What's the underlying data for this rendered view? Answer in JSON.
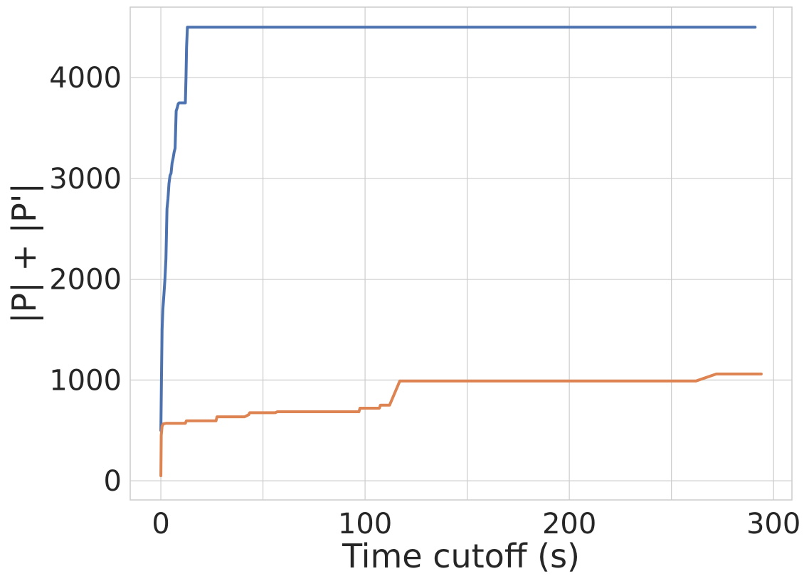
{
  "chart_data": {
    "type": "line",
    "title": "",
    "xlabel": "Time cutoff (s)",
    "ylabel": "|P| + |P'|",
    "xlim": [
      -15,
      309
    ],
    "ylim": [
      -190,
      4700
    ],
    "xticks": [
      0,
      100,
      200,
      300
    ],
    "xtick_labels": [
      "0",
      "100",
      "200",
      "300"
    ],
    "yticks": [
      0,
      1000,
      2000,
      3000,
      4000
    ],
    "ytick_labels": [
      "0",
      "1000",
      "2000",
      "3000",
      "4000"
    ],
    "grid": true,
    "legend": "none",
    "series": [
      {
        "color": "#4c72b0",
        "x": [
          0,
          0.3,
          0.6,
          1,
          1.5,
          2,
          2.5,
          3,
          3.5,
          4,
          4.5,
          5,
          5.5,
          6,
          6.5,
          7,
          7.5,
          8,
          8.5,
          9,
          10,
          11,
          12,
          12.3,
          12.6,
          13,
          100,
          200,
          291
        ],
        "y": [
          500,
          1000,
          1500,
          1700,
          1850,
          2000,
          2200,
          2700,
          2800,
          2950,
          3030,
          3050,
          3150,
          3200,
          3260,
          3300,
          3670,
          3700,
          3740,
          3750,
          3750,
          3750,
          3750,
          4000,
          4300,
          4500,
          4500,
          4500,
          4500
        ]
      },
      {
        "color": "#dd8452",
        "x": [
          0,
          0.2,
          0.6,
          1.2,
          2.5,
          12,
          12.5,
          27,
          27.5,
          41,
          42,
          43,
          43.5,
          56,
          57,
          97,
          97.5,
          107,
          107.5,
          112,
          117,
          118,
          262,
          272,
          294
        ],
        "y": [
          50,
          450,
          540,
          565,
          570,
          570,
          595,
          595,
          635,
          635,
          645,
          655,
          675,
          675,
          685,
          685,
          720,
          720,
          750,
          750,
          990,
          990,
          990,
          1060,
          1060
        ]
      }
    ]
  }
}
